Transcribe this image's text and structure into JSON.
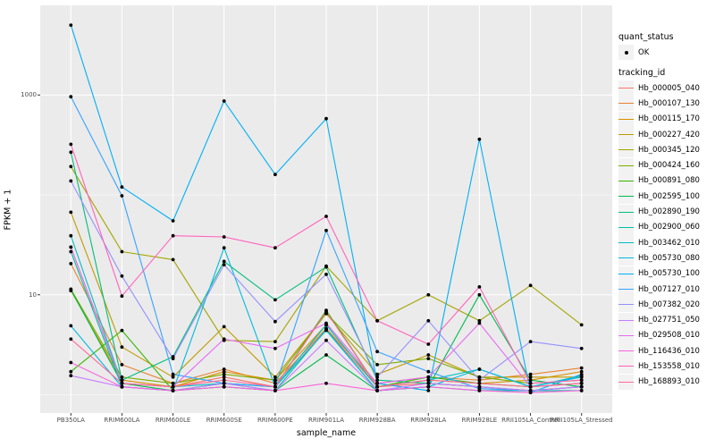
{
  "chart_data": {
    "type": "line",
    "title": "",
    "xlabel": "sample_name",
    "ylabel": "FPKM + 1",
    "y_scale": "log10",
    "ylim": [
      0.65,
      8000
    ],
    "grid": true,
    "panel_background": "#EBEBEB",
    "grid_color": "#FFFFFF",
    "point_color": "#000000",
    "axis_text_color": "#4d4d4d",
    "y_ticks": [
      {
        "value": 1000,
        "label": "1000"
      },
      {
        "value": 10,
        "label": "10"
      }
    ],
    "y_minor_gridlines": [
      1,
      100
    ],
    "y_major_gridlines": [
      10,
      1000
    ],
    "categories": [
      "PB350LA",
      "RRIM600LA",
      "RRIM600LE",
      "RRIM600SE",
      "RRIM600PE",
      "RRIM901LA",
      "RRIM928BA",
      "RRIM928LA",
      "RRIM928LE",
      "RRII105LA_Control",
      "RRII105LA_Stressed"
    ],
    "legend": {
      "position": "right",
      "quant_status": {
        "title": "quant_status",
        "items": [
          {
            "label": "OK",
            "shape": "point"
          }
        ]
      },
      "tracking_id": {
        "title": "tracking_id"
      }
    },
    "series": [
      {
        "name": "Hb_000005_040",
        "color": "#F8766D",
        "values": [
          30,
          1.3,
          1.2,
          1.5,
          1.2,
          4.5,
          1.2,
          1.3,
          1.2,
          1.1,
          1.2
        ]
      },
      {
        "name": "Hb_000107_130",
        "color": "#EA8331",
        "values": [
          20.5,
          2.0,
          1.3,
          1.8,
          1.3,
          4.6,
          1.3,
          1.5,
          1.4,
          1.6,
          1.85
        ]
      },
      {
        "name": "Hb_000115_170",
        "color": "#D89000",
        "values": [
          11,
          1.4,
          1.2,
          1.7,
          1.4,
          5.0,
          1.2,
          1.4,
          1.3,
          1.4,
          1.7
        ]
      },
      {
        "name": "Hb_000227_420",
        "color": "#C09B00",
        "values": [
          67,
          3.0,
          1.5,
          4.8,
          1.5,
          6.5,
          1.6,
          2.5,
          1.5,
          1.5,
          1.5
        ]
      },
      {
        "name": "Hb_000345_120",
        "color": "#A3A500",
        "values": [
          192,
          27,
          22.5,
          3.5,
          3.4,
          19.4,
          5.5,
          10,
          5.5,
          12.4,
          5.0
        ]
      },
      {
        "name": "Hb_000424_160",
        "color": "#7CAE00",
        "values": [
          11.4,
          1.5,
          1.3,
          1.6,
          1.4,
          6.5,
          2.0,
          2.3,
          1.5,
          1.3,
          1.4
        ]
      },
      {
        "name": "Hb_000891_080",
        "color": "#39B600",
        "values": [
          1.7,
          4.4,
          1.1,
          1.3,
          1.2,
          7.0,
          1.2,
          1.5,
          1.3,
          1.2,
          1.3
        ]
      },
      {
        "name": "Hb_002595_100",
        "color": "#00BB4E",
        "values": [
          11.2,
          1.3,
          1.1,
          1.2,
          1.1,
          2.5,
          1.1,
          1.2,
          10,
          1.4,
          1.2
        ]
      },
      {
        "name": "Hb_002890_190",
        "color": "#00BF7D",
        "values": [
          267,
          1.4,
          2.4,
          21.6,
          8.9,
          19,
          1.4,
          1.3,
          1.2,
          1.1,
          1.2
        ]
      },
      {
        "name": "Hb_002900_060",
        "color": "#00C1A3",
        "values": [
          27,
          1.2,
          1.1,
          1.3,
          1.1,
          4.5,
          1.1,
          1.2,
          1.1,
          1.1,
          1.1
        ]
      },
      {
        "name": "Hb_003462_010",
        "color": "#00BFC4",
        "values": [
          39,
          1.3,
          1.2,
          1.3,
          1.2,
          5.0,
          1.2,
          1.4,
          1.8,
          1.2,
          1.55
        ]
      },
      {
        "name": "Hb_005730_080",
        "color": "#00BAE0",
        "values": [
          4.9,
          1.2,
          1.1,
          29.5,
          1.2,
          4.4,
          1.1,
          1.2,
          1.8,
          1.2,
          1.5
        ]
      },
      {
        "name": "Hb_005730_100",
        "color": "#00B0F6",
        "values": [
          5000,
          120,
          55,
          870,
          160,
          580,
          1.3,
          1.1,
          360,
          1.05,
          1.6
        ]
      },
      {
        "name": "Hb_007127_010",
        "color": "#35A2FF",
        "values": [
          960,
          98,
          1.6,
          1.3,
          1.2,
          44,
          2.7,
          1.7,
          1.15,
          1.1,
          1.2
        ]
      },
      {
        "name": "Hb_007382_020",
        "color": "#9590FF",
        "values": [
          138,
          15.4,
          2.3,
          20,
          5.4,
          16,
          1.5,
          5.5,
          1.4,
          3.4,
          2.9
        ]
      },
      {
        "name": "Hb_027751_050",
        "color": "#C77CFF",
        "values": [
          1.55,
          1.2,
          1.1,
          1.3,
          1.1,
          3.5,
          1.1,
          1.3,
          1.2,
          1.1,
          1.2
        ]
      },
      {
        "name": "Hb_029508_010",
        "color": "#E76BF3",
        "values": [
          30,
          1.3,
          1.2,
          3.6,
          2.9,
          5.2,
          1.3,
          1.5,
          5.2,
          1.2,
          1.3
        ]
      },
      {
        "name": "Hb_116436_010",
        "color": "#FA62DB",
        "values": [
          2.1,
          1.2,
          1.1,
          1.2,
          1.1,
          1.3,
          1.1,
          1.2,
          1.1,
          1.05,
          1.1
        ]
      },
      {
        "name": "Hb_153558_010",
        "color": "#FF62BC",
        "values": [
          321,
          9.7,
          39,
          38,
          29.5,
          61,
          5.5,
          3.2,
          12,
          1.3,
          1.4
        ]
      },
      {
        "name": "Hb_168893_010",
        "color": "#FF6A98",
        "values": [
          3.6,
          1.3,
          1.2,
          1.4,
          1.2,
          6.8,
          1.2,
          1.4,
          1.3,
          1.2,
          1.3
        ]
      }
    ]
  }
}
